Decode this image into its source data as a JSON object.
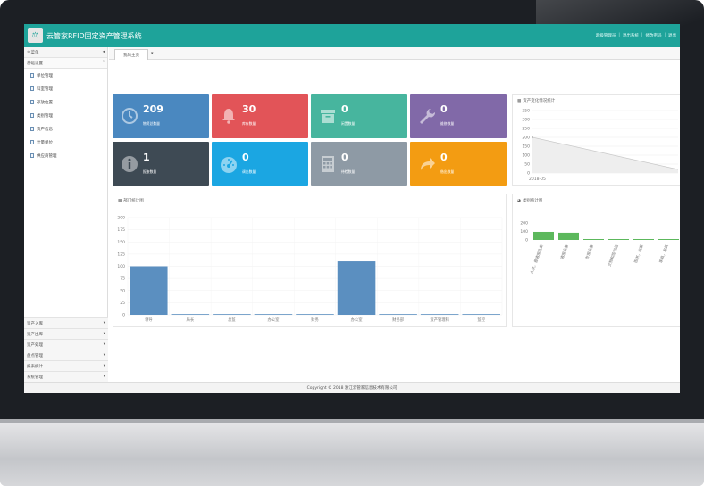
{
  "app": {
    "title": "云管家RFID固定资产管理系统"
  },
  "top_links": [
    "超级管理员",
    "退出系统",
    "修改密码",
    "退出"
  ],
  "sidebar": {
    "header": "主菜单",
    "section": "基础设置",
    "items": [
      "单位管理",
      "科室管理",
      "存放位置",
      "类别管理",
      "资产信息",
      "计量单位",
      "供应商管理"
    ],
    "groups": [
      "资产入库",
      "资产出库",
      "资产处理",
      "盘点管理",
      "报表统计",
      "系统管理"
    ]
  },
  "tabs": {
    "active": "我的主页"
  },
  "tiles": [
    {
      "value": "209",
      "label": "物资总数量",
      "color": "#4a88c0",
      "icon": "clock-icon"
    },
    {
      "value": "30",
      "label": "库存数量",
      "color": "#e25458",
      "icon": "bell-icon"
    },
    {
      "value": "0",
      "label": "闲置数量",
      "color": "#47b59e",
      "icon": "archive-icon"
    },
    {
      "value": "0",
      "label": "维修数量",
      "color": "#8169a8",
      "icon": "wrench-icon"
    },
    {
      "value": "1",
      "label": "报废数量",
      "color": "#3e4a54",
      "icon": "info-icon"
    },
    {
      "value": "0",
      "label": "调出数量",
      "color": "#1ba6e2",
      "icon": "dashboard-icon"
    },
    {
      "value": "0",
      "label": "待检数量",
      "color": "#8e9aa5",
      "icon": "calculator-icon"
    },
    {
      "value": "0",
      "label": "借出数量",
      "color": "#f39c12",
      "icon": "share-icon"
    }
  ],
  "trend_panel": {
    "title": "资产变化情况统计",
    "y_ticks": [
      "350",
      "300",
      "250",
      "200",
      "150",
      "100",
      "50",
      "0"
    ],
    "x_label": "2018-05"
  },
  "dept_panel": {
    "title": "部门统计图"
  },
  "category_panel": {
    "title": "类别统计图",
    "y_ticks": [
      "200",
      "100",
      "0"
    ]
  },
  "chart_data": [
    {
      "type": "line",
      "title": "资产变化情况统计",
      "x": [
        "2018-05"
      ],
      "ylim": [
        0,
        350
      ],
      "series": [
        {
          "values": [
            200
          ]
        }
      ]
    },
    {
      "type": "bar",
      "title": "部门统计图",
      "categories": [
        "领导",
        "局长",
        "总监",
        "办公室",
        "财务",
        "办公室",
        "财务部",
        "资产管理科",
        "监控"
      ],
      "values": [
        100,
        0,
        0,
        0,
        0,
        110,
        0,
        0,
        0
      ],
      "ylim": [
        0,
        200
      ],
      "y_ticks": [
        0,
        25,
        50,
        75,
        100,
        125,
        150,
        175,
        200
      ]
    },
    {
      "type": "bar",
      "title": "类别统计图",
      "categories": [
        "大类，普通用品类",
        "通用设备",
        "专用设备",
        "文物和陈列品",
        "图书，档案",
        "家具，用具"
      ],
      "values": [
        95,
        85,
        5,
        5,
        5,
        5
      ],
      "ylim": [
        0,
        200
      ],
      "y_ticks": [
        0,
        100,
        200
      ]
    }
  ],
  "footer": {
    "copyright": "Copyright © 2018 浙江云管家信息技术有限公司"
  }
}
